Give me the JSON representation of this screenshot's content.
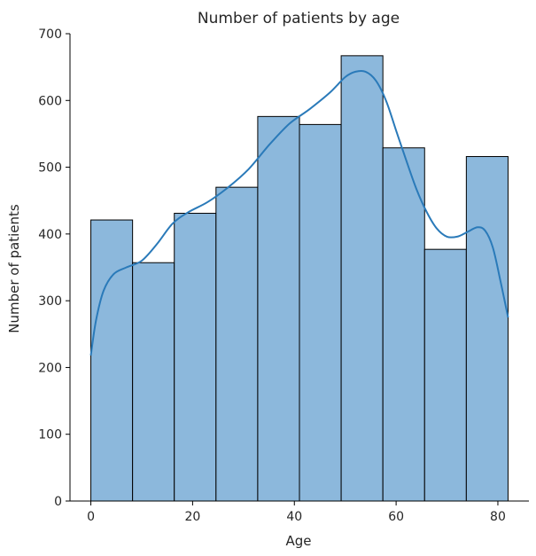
{
  "chart_data": {
    "type": "bar",
    "title": "Number of patients by age",
    "xlabel": "Age",
    "ylabel": "Number of patients",
    "xlim": [
      -4.1,
      86.1
    ],
    "ylim": [
      0,
      700
    ],
    "x_ticks": [
      "0",
      "20",
      "40",
      "60",
      "80"
    ],
    "x_tick_values": [
      0,
      20,
      40,
      60,
      80
    ],
    "y_ticks": [
      "0",
      "100",
      "200",
      "300",
      "400",
      "500",
      "600",
      "700"
    ],
    "y_tick_values": [
      0,
      100,
      200,
      300,
      400,
      500,
      600,
      700
    ],
    "bins": [
      {
        "start": 0,
        "end": 8.2,
        "count": 421
      },
      {
        "start": 8.2,
        "end": 16.4,
        "count": 357
      },
      {
        "start": 16.4,
        "end": 24.6,
        "count": 431
      },
      {
        "start": 24.6,
        "end": 32.8,
        "count": 470
      },
      {
        "start": 32.8,
        "end": 41.0,
        "count": 576
      },
      {
        "start": 41.0,
        "end": 49.2,
        "count": 564
      },
      {
        "start": 49.2,
        "end": 57.4,
        "count": 667
      },
      {
        "start": 57.4,
        "end": 65.6,
        "count": 529
      },
      {
        "start": 65.6,
        "end": 73.8,
        "count": 377
      },
      {
        "start": 73.8,
        "end": 82.0,
        "count": 516
      }
    ],
    "kde_curve": {
      "x": [
        0,
        1,
        2.5,
        4.5,
        7,
        10,
        13,
        16,
        19,
        23,
        27,
        31,
        35,
        39,
        43,
        47,
        50,
        52,
        54,
        56,
        58,
        60,
        62,
        64,
        66,
        68,
        70,
        72,
        74,
        76,
        77.5,
        79,
        80.5,
        82
      ],
      "y": [
        218,
        270,
        315,
        340,
        350,
        360,
        385,
        415,
        432,
        448,
        470,
        497,
        533,
        565,
        587,
        612,
        635,
        643,
        643,
        630,
        600,
        555,
        510,
        467,
        433,
        408,
        396,
        396,
        403,
        410,
        405,
        380,
        330,
        275
      ]
    },
    "colors": {
      "bar_fill": "#8cb8dc",
      "bar_edge": "#000000",
      "kde_line": "#2a7ab9",
      "axis": "#000000",
      "text": "#262626"
    },
    "grid": false
  }
}
